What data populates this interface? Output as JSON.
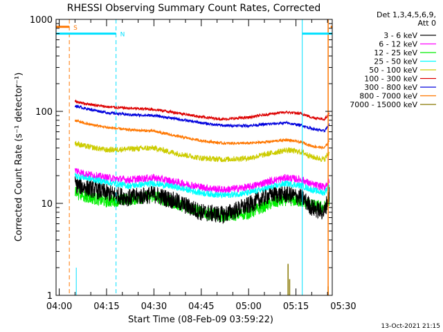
{
  "chart_data": {
    "type": "line",
    "title": "RHESSI Observing Summary Count Rates, Corrected",
    "xlabel": "Start Time (08-Feb-09 03:59:22)",
    "ylabel": "Corrected Count Rate (s⁻¹ detector⁻¹)",
    "yscale": "log",
    "ylim": [
      1,
      1000
    ],
    "xlim_minutes": [
      -1,
      86.5
    ],
    "x_ticks": [
      {
        "m": 0,
        "label": "04:00"
      },
      {
        "m": 15,
        "label": "04:15"
      },
      {
        "m": 30,
        "label": "04:30"
      },
      {
        "m": 45,
        "label": "04:45"
      },
      {
        "m": 60,
        "label": "05:00"
      },
      {
        "m": 75,
        "label": "05:15"
      },
      {
        "m": 90,
        "label": "05:30"
      }
    ],
    "y_ticks": [
      {
        "v": 1,
        "label": "1"
      },
      {
        "v": 10,
        "label": "10"
      },
      {
        "v": 100,
        "label": "100"
      },
      {
        "v": 1000,
        "label": "1000"
      }
    ],
    "data_start_minute": 5,
    "data_end_minute": 86,
    "legend": {
      "header": [
        "Det 1,3,4,5,6,9,",
        "Att 0"
      ],
      "position": "right"
    },
    "series": [
      {
        "name": "3 - 6 keV",
        "color": "#000000",
        "noise": 0.14,
        "key_m": [
          5,
          8,
          15,
          22,
          30,
          37,
          45,
          52,
          60,
          67,
          72,
          77,
          80,
          84,
          85.6
        ],
        "key_v": [
          16,
          15,
          13,
          11.5,
          12.5,
          10.5,
          8,
          7.5,
          9.5,
          12.5,
          12.5,
          11.5,
          9,
          8,
          13
        ]
      },
      {
        "name": "6 - 12 keV",
        "color": "#ff00ff",
        "noise": 0.06,
        "key_m": [
          5,
          8,
          15,
          22,
          30,
          37,
          45,
          52,
          60,
          67,
          72,
          77,
          80,
          84,
          85.6
        ],
        "key_v": [
          23,
          21,
          19,
          18,
          19,
          17,
          15,
          14,
          15,
          17.5,
          19,
          18,
          16,
          15,
          18
        ]
      },
      {
        "name": "12 - 25 keV",
        "color": "#00ee00",
        "noise": 0.1,
        "key_m": [
          5,
          8,
          15,
          22,
          30,
          37,
          45,
          52,
          60,
          67,
          72,
          77,
          80,
          84,
          85.6
        ],
        "key_v": [
          13,
          12,
          10.5,
          11,
          12,
          10,
          8,
          7.3,
          7.8,
          10,
          11,
          10.5,
          9.5,
          9,
          11
        ]
      },
      {
        "name": "25 - 50 keV",
        "color": "#00ffff",
        "noise": 0.05,
        "key_m": [
          5,
          8,
          15,
          22,
          30,
          37,
          45,
          52,
          60,
          67,
          72,
          77,
          80,
          84,
          85.6
        ],
        "key_v": [
          20,
          19,
          17,
          15.5,
          16.5,
          15,
          13,
          12.2,
          13,
          15,
          16.5,
          15.5,
          14,
          13,
          16
        ]
      },
      {
        "name": "50 - 100 keV",
        "color": "#cccc00",
        "noise": 0.045,
        "key_m": [
          5,
          8,
          15,
          22,
          30,
          37,
          45,
          52,
          60,
          67,
          72,
          77,
          80,
          84,
          85.6
        ],
        "key_v": [
          45,
          42,
          38,
          39,
          40,
          35,
          31,
          30,
          31,
          35,
          38,
          36,
          32,
          30,
          36
        ]
      },
      {
        "name": "100 - 300 keV",
        "color": "#dd0000",
        "noise": 0.022,
        "key_m": [
          5,
          8,
          15,
          22,
          30,
          37,
          45,
          52,
          60,
          67,
          72,
          77,
          80,
          84,
          85.6
        ],
        "key_v": [
          128,
          122,
          112,
          108,
          105,
          97,
          87,
          82,
          86,
          94,
          98,
          94,
          86,
          82,
          95
        ]
      },
      {
        "name": "300 - 800 keV",
        "color": "#0000dd",
        "noise": 0.022,
        "key_m": [
          5,
          8,
          15,
          22,
          30,
          37,
          45,
          52,
          60,
          67,
          72,
          77,
          80,
          84,
          85.6
        ],
        "key_v": [
          115,
          108,
          97,
          92,
          90,
          83,
          75,
          70,
          70,
          73,
          75,
          70,
          65,
          61,
          72
        ]
      },
      {
        "name": "800 - 7000 keV",
        "color": "#ff7700",
        "noise": 0.022,
        "key_m": [
          5,
          8,
          15,
          22,
          30,
          37,
          45,
          52,
          60,
          67,
          72,
          77,
          80,
          84,
          85.6
        ],
        "key_v": [
          80,
          74,
          67,
          63,
          61,
          54,
          48,
          45,
          45,
          47,
          49,
          46,
          42,
          40,
          48
        ]
      },
      {
        "name": "7000 - 15000 keV",
        "color": "#887700",
        "noise": 0,
        "key_m": [],
        "key_v": []
      }
    ],
    "annotations": [
      {
        "label": "S",
        "color": "#ff7700",
        "type": "flag_bar",
        "x_start_m": -1,
        "x_end_m": 3.2,
        "y_value": 830
      },
      {
        "label": "N",
        "color": "#00e0ff",
        "type": "flag_bar",
        "x_start_m": -1,
        "x_end_m": 18,
        "y_value": 700
      },
      {
        "label": "",
        "color": "#00e0ff",
        "type": "flag_bar",
        "x_start_m": 77,
        "x_end_m": 86.5,
        "y_value": 700
      },
      {
        "label": "",
        "color": "#ff7700",
        "type": "flag_bar",
        "x_start_m": 86,
        "x_end_m": 86.5,
        "y_value": 830
      }
    ],
    "spikes_7000_15000_keV": [
      {
        "m": 72.5,
        "v": 2.2
      },
      {
        "m": 73.0,
        "v": 1.5
      },
      {
        "m": 85.2,
        "v": 1.25
      }
    ]
  },
  "footer": {
    "timestamp": "13-Oct-2021 21:15"
  }
}
